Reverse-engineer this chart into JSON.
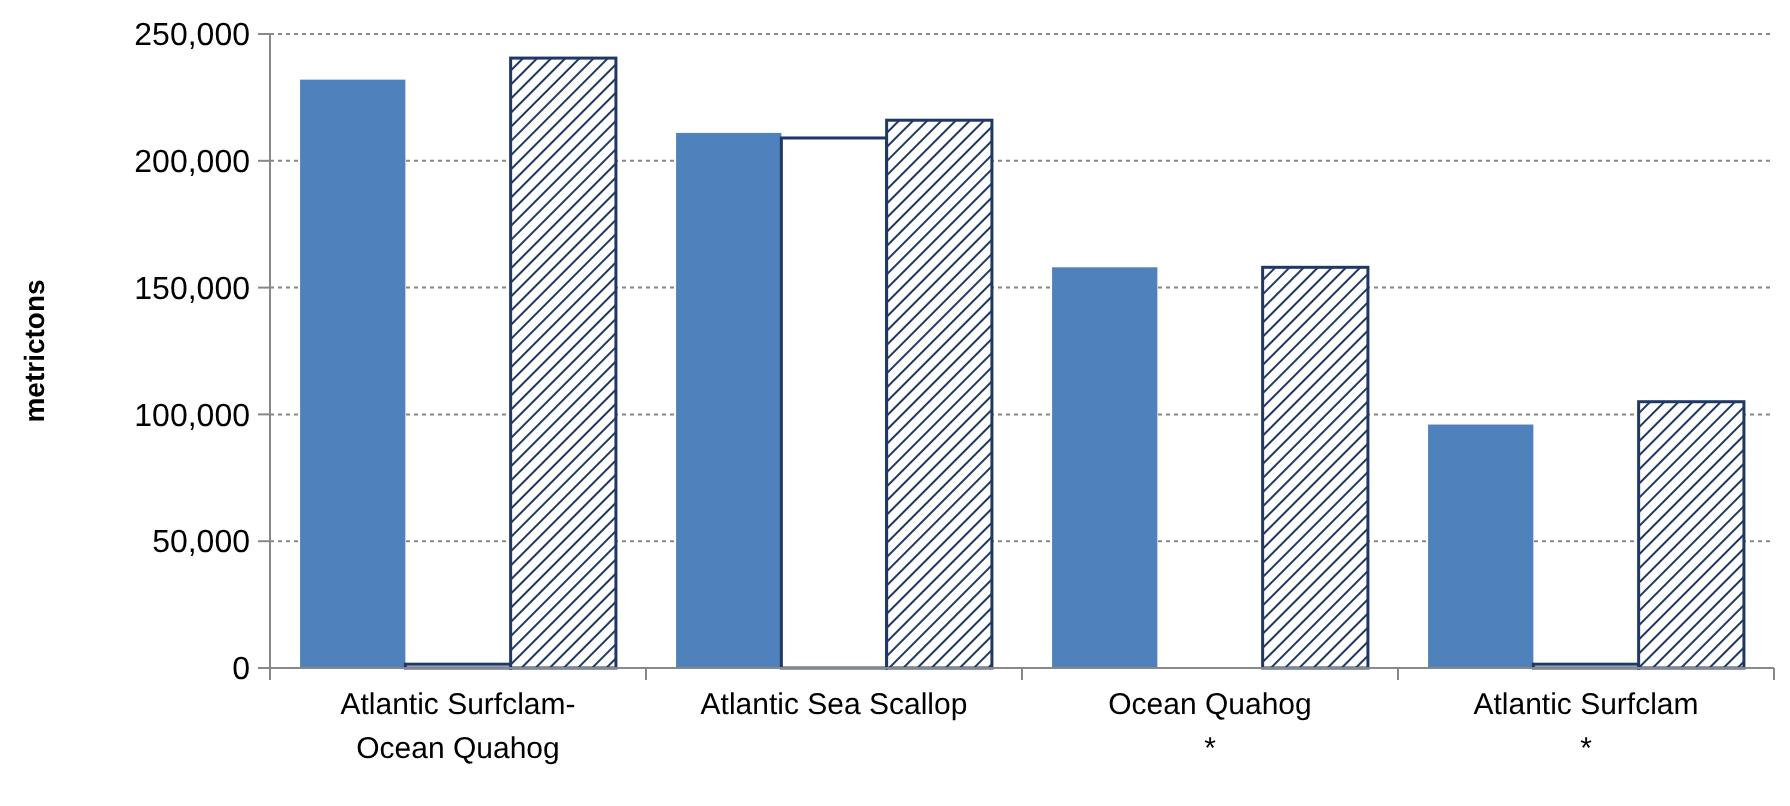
{
  "chart_data": {
    "type": "bar",
    "ylabel": "metrictons",
    "categories": [
      "Atlantic Surfclam-\nOcean Quahog",
      "Atlantic Sea Scallop",
      "Ocean Quahog\n*",
      "Atlantic Surfclam\n*"
    ],
    "series": [
      {
        "color": "#4f81bd",
        "values": [
          232000,
          211000,
          158000,
          96000
        ]
      },
      {
        "color": "#ffffff",
        "values": [
          1500,
          209000,
          0,
          1500
        ]
      },
      {
        "color": "#1f3864",
        "values": [
          240500,
          216000,
          158000,
          105000
        ]
      }
    ],
    "ylim": [
      0,
      250000
    ],
    "yticks": [
      {
        "value": 0,
        "label": "0"
      },
      {
        "value": 50000,
        "label": "50,000"
      },
      {
        "value": 100000,
        "label": "100,000"
      },
      {
        "value": 150000,
        "label": "150,000"
      },
      {
        "value": 200000,
        "label": "200,000"
      },
      {
        "value": 250000,
        "label": "250,000"
      }
    ],
    "grid": "y"
  }
}
